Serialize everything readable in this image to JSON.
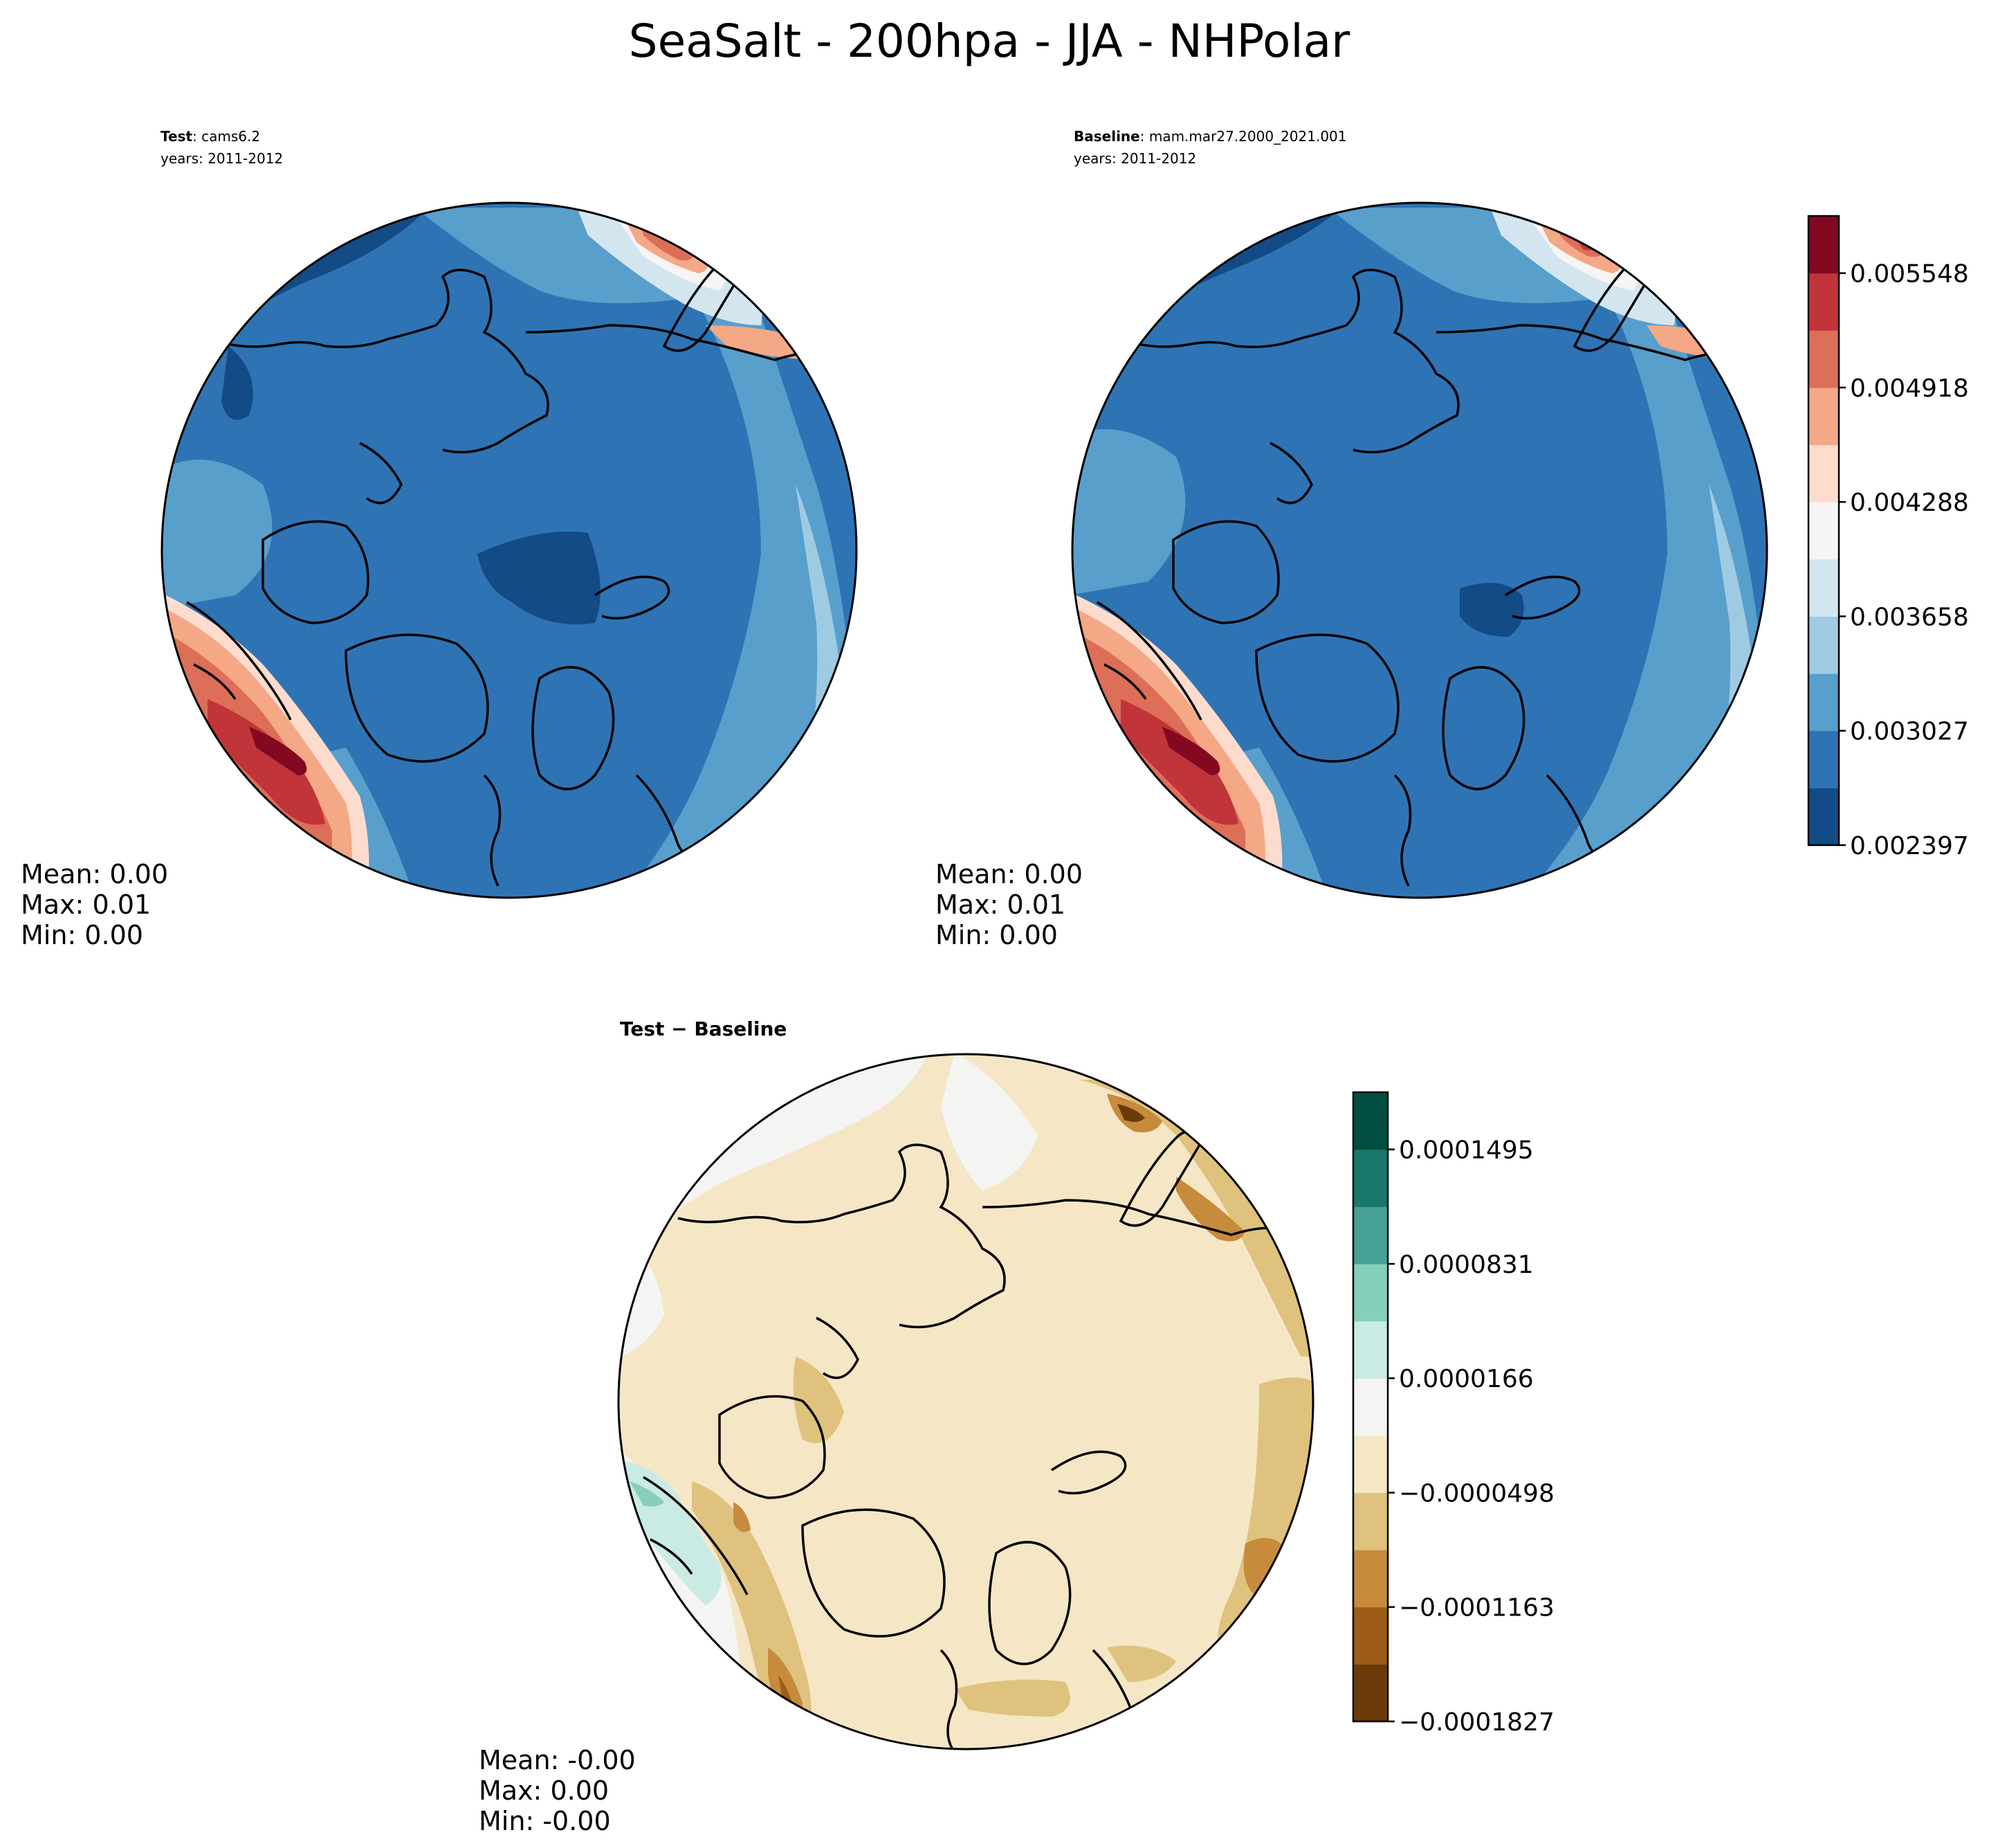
{
  "figure": {
    "title": "SeaSalt - 200hpa - JJA - NHPolar"
  },
  "panels": {
    "test": {
      "label_bold": "Test",
      "label_rest": ": cams6.2",
      "years": "years: 2011-2012",
      "stats": {
        "mean": "Mean:  0.00",
        "max": "Max:  0.01",
        "min": "Min:  0.00"
      }
    },
    "baseline": {
      "label_bold": "Baseline",
      "label_rest": ": mam.mar27.2000_2021.001",
      "years": "years: 2011-2012",
      "stats": {
        "mean": "Mean:  0.00",
        "max": "Max:  0.01",
        "min": "Min:  0.00"
      }
    },
    "diff": {
      "label": "Test − Baseline",
      "stats": {
        "mean": "Mean: -0.00",
        "max": "Max:  0.00",
        "min": "Min: -0.00"
      }
    }
  },
  "colorbars": {
    "main": {
      "colors": [
        "#134b87",
        "#2e74b4",
        "#589fcc",
        "#9fcbe2",
        "#d3e6f0",
        "#f6f5f4",
        "#fedccd",
        "#f4a885",
        "#dd6e58",
        "#c1343a",
        "#82091f"
      ],
      "ticks": [
        "0.002397",
        "0.003027",
        "0.003658",
        "0.004288",
        "0.004918",
        "0.005548"
      ]
    },
    "diff": {
      "colors": [
        "#6b3b0b",
        "#9d5d17",
        "#c68b3c",
        "#dfc27e",
        "#f5e7c5",
        "#f4f4f3",
        "#c9ebe4",
        "#86cfbd",
        "#47a195",
        "#187869",
        "#014d40"
      ],
      "ticks": [
        "−0.0001827",
        "−0.0001163",
        "−0.0000498",
        "0.0000166",
        "0.0000831",
        "0.0001495"
      ]
    }
  }
}
